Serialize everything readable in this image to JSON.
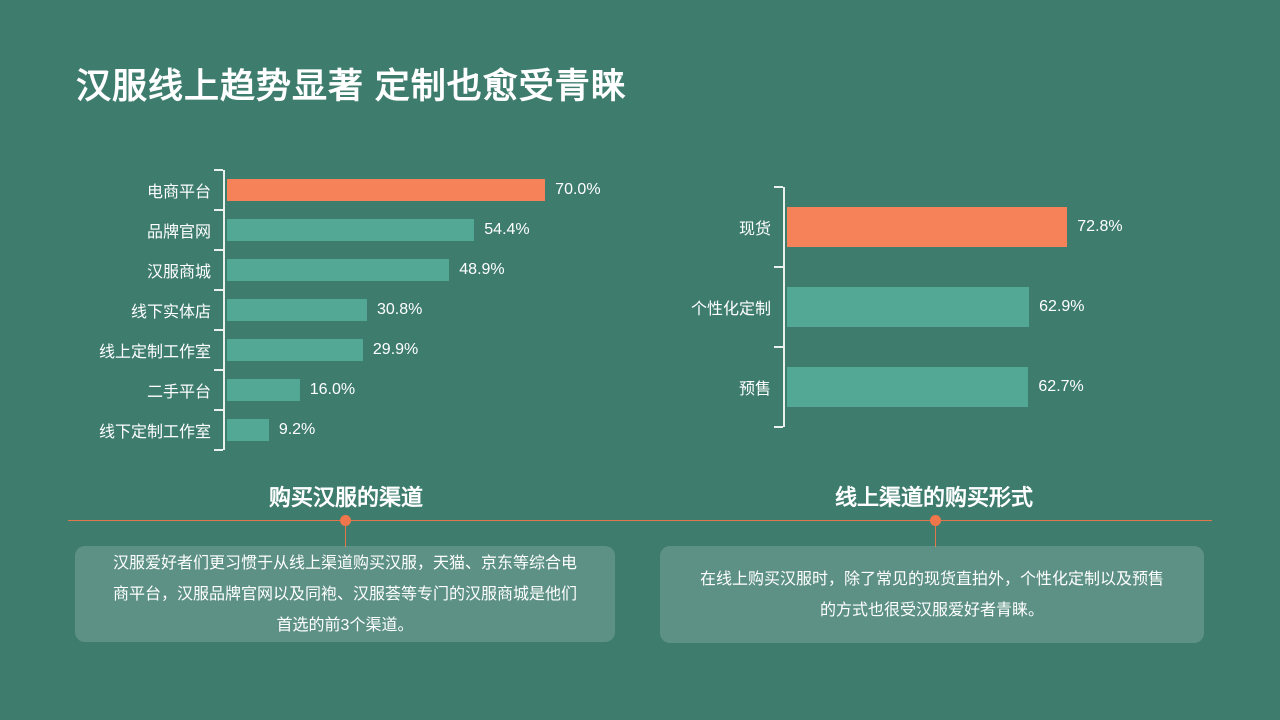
{
  "slide": {
    "title": "汉服线上趋势显著 定制也愈受青睐",
    "background_color": "#3E7C6E",
    "accent_color": "#E2784A",
    "accent_dot_color": "#F2764B",
    "axis_color": "#E9F0ED",
    "text_color": "#FFFFFF"
  },
  "chart_data": [
    {
      "type": "bar",
      "orientation": "horizontal",
      "title": "购买汉服的渠道",
      "categories": [
        "电商平台",
        "品牌官网",
        "汉服商城",
        "线下实体店",
        "线上定制工作室",
        "二手平台",
        "线下定制工作室"
      ],
      "values": [
        70.0,
        54.4,
        48.9,
        30.8,
        29.9,
        16.0,
        9.2
      ],
      "labels": [
        "70.0%",
        "54.4%",
        "48.9%",
        "30.8%",
        "29.9%",
        "16.0%",
        "9.2%"
      ],
      "xlim": [
        0,
        77
      ],
      "highlight_index": 0,
      "highlight_color": "#F6825A",
      "bar_color": "#52A795",
      "grid": false,
      "legend": false
    },
    {
      "type": "bar",
      "orientation": "horizontal",
      "title": "线上渠道的购买形式",
      "categories": [
        "现货",
        "个性化定制",
        "预售"
      ],
      "values": [
        72.8,
        62.9,
        62.7
      ],
      "labels": [
        "72.8%",
        "62.9%",
        "62.7%"
      ],
      "xlim": [
        0,
        80
      ],
      "highlight_index": 0,
      "highlight_color": "#F6825A",
      "bar_color": "#52A795",
      "grid": false,
      "legend": false
    }
  ],
  "sections": [
    {
      "title": "购买汉服的渠道",
      "note": "汉服爱好者们更习惯于从线上渠道购买汉服，天猫、京东等综合电商平台，汉服品牌官网以及同袍、汉服荟等专门的汉服商城是他们首选的前3个渠道。"
    },
    {
      "title": "线上渠道的购买形式",
      "note": "在线上购买汉服时，除了常见的现货直拍外，个性化定制以及预售的方式也很受汉服爱好者青睐。"
    }
  ]
}
